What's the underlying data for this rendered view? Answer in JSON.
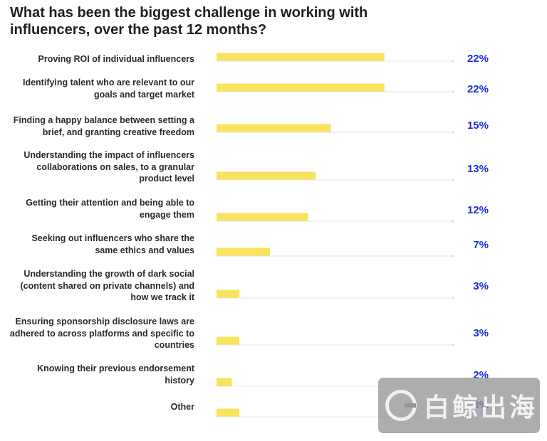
{
  "chart_data": {
    "type": "bar",
    "orientation": "horizontal",
    "title": "What has been the biggest challenge in working with influencers, over the past 12 months?",
    "categories": [
      "Proving ROI of individual influencers",
      "Identifying talent who are relevant to our goals and target market",
      "Finding a happy balance between setting a brief, and granting creative freedom",
      "Understanding the impact of influencers collaborations on sales, to a granular product level",
      "Getting their attention and being able to engage them",
      "Seeking out influencers who share the same ethics and values",
      "Understanding the growth of dark social (content shared on private channels) and how we track it",
      "Ensuring sponsorship disclosure laws are adhered to across platforms and specific to countries",
      "Knowing their previous endorsement history",
      "Other"
    ],
    "values": [
      22,
      22,
      15,
      13,
      12,
      7,
      3,
      3,
      2,
      3
    ],
    "value_labels": [
      "22%",
      "22%",
      "15%",
      "13%",
      "12%",
      "7%",
      "3%",
      "3%",
      "2%",
      "3%"
    ],
    "xlim": [
      0,
      31
    ],
    "bar_color": "#f7e35c",
    "value_label_color": "#1c2fd8"
  },
  "watermark": {
    "text": "白鲸出海"
  }
}
